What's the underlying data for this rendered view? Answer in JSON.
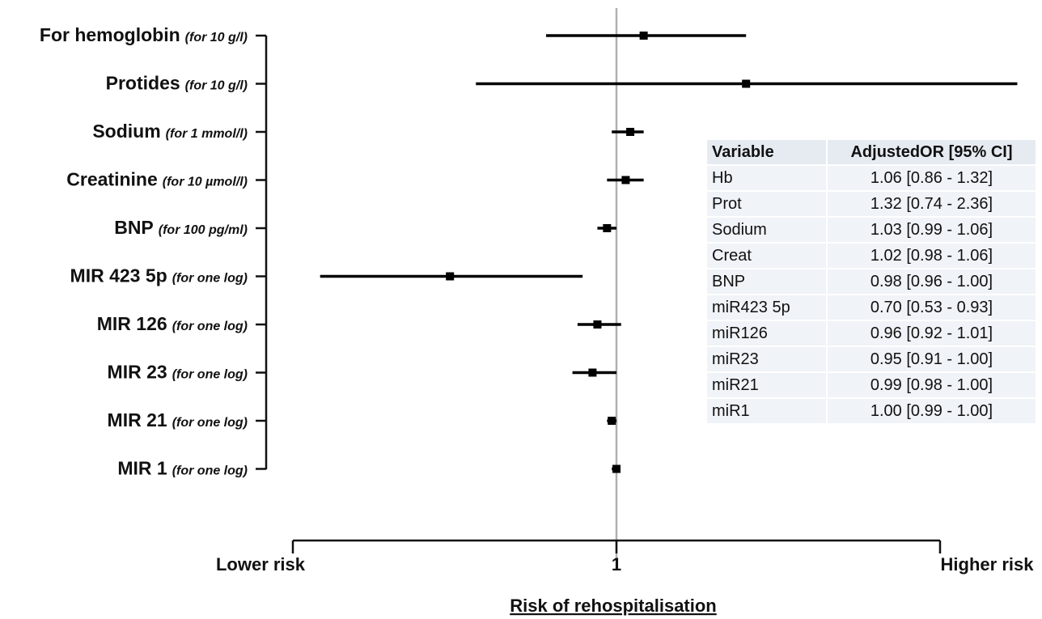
{
  "chart_data": {
    "type": "forest",
    "reference_value": 1,
    "reference_label": "1",
    "axis_left_label": "Lower risk",
    "axis_right_label": "Higher risk",
    "axis_title": "Risk of rehospitalisation",
    "rows": [
      {
        "label": "For hemoglobin",
        "unit": "(for 10 g/l)",
        "or": 1.06,
        "lo": 0.86,
        "hi": 1.32
      },
      {
        "label": "Protides",
        "unit": "(for 10 g/l)",
        "or": 1.32,
        "lo": 0.74,
        "hi": 2.36
      },
      {
        "label": "Sodium",
        "unit": "(for 1 mmol/l)",
        "or": 1.03,
        "lo": 0.99,
        "hi": 1.06
      },
      {
        "label": "Creatinine",
        "unit": "(for 10 µmol/l)",
        "or": 1.02,
        "lo": 0.98,
        "hi": 1.06
      },
      {
        "label": "BNP",
        "unit": "(for 100 pg/ml)",
        "or": 0.98,
        "lo": 0.96,
        "hi": 1.0
      },
      {
        "label": "MIR 423 5p",
        "unit": "(for one log)",
        "or": 0.7,
        "lo": 0.53,
        "hi": 0.93
      },
      {
        "label": "MIR 126",
        "unit": "(for one log)",
        "or": 0.96,
        "lo": 0.92,
        "hi": 1.01
      },
      {
        "label": "MIR 23",
        "unit": "(for one log)",
        "or": 0.95,
        "lo": 0.91,
        "hi": 1.0
      },
      {
        "label": "MIR 21",
        "unit": "(for one log)",
        "or": 0.99,
        "lo": 0.98,
        "hi": 1.0
      },
      {
        "label": "MIR 1",
        "unit": "(for one log)",
        "or": 1.0,
        "lo": 0.99,
        "hi": 1.0
      }
    ]
  },
  "table": {
    "headers": [
      "Variable",
      "AdjustedOR [95% CI]"
    ],
    "rows": [
      [
        "Hb",
        "1.06 [0.86 - 1.32]"
      ],
      [
        "Prot",
        "1.32 [0.74 - 2.36]"
      ],
      [
        "Sodium",
        "1.03 [0.99 - 1.06]"
      ],
      [
        "Creat",
        "1.02 [0.98 - 1.06]"
      ],
      [
        "BNP",
        "0.98 [0.96 - 1.00]"
      ],
      [
        "miR423 5p",
        "0.70 [0.53 - 0.93]"
      ],
      [
        "miR126",
        "0.96 [0.92 - 1.01]"
      ],
      [
        "miR23",
        "0.95 [0.91 - 1.00]"
      ],
      [
        "miR21",
        "0.99 [0.98 - 1.00]"
      ],
      [
        "miR1",
        "1.00 [0.99 - 1.00]"
      ]
    ]
  }
}
